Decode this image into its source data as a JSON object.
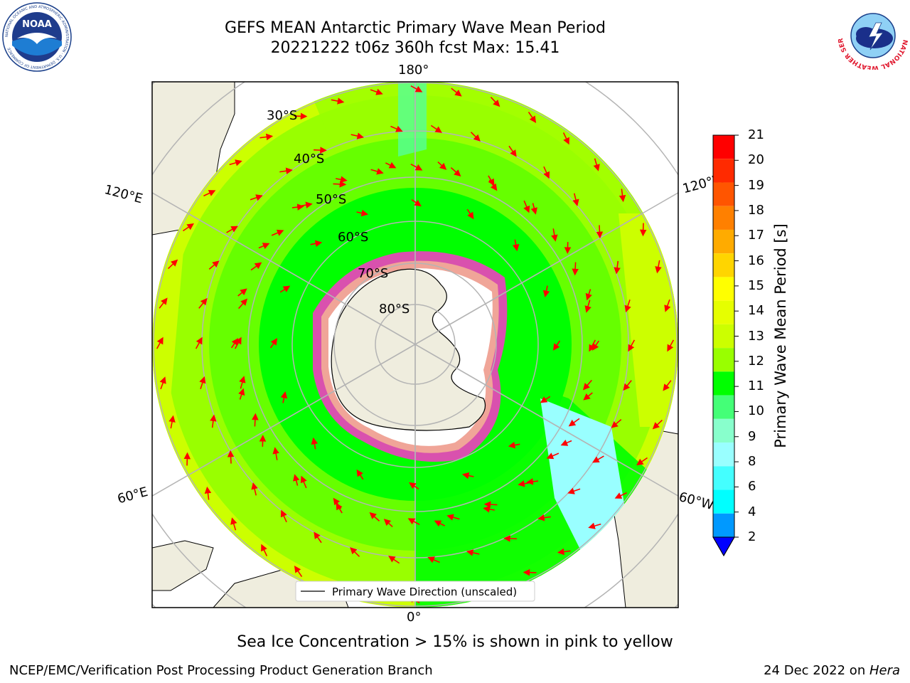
{
  "header": {
    "title_line1": "GEFS MEAN Antarctic Primary Wave Mean Period",
    "title_line2": "20221222 t06z 360h fcst   Max: 15.41"
  },
  "logos": {
    "noaa_text": "NOAA",
    "noaa_ring_text": "NATIONAL OCEANIC AND ATMOSPHERIC ADMINISTRATION · U.S. DEPARTMENT OF COMMERCE",
    "nws_ring_text": "NATIONAL WEATHER SERVICE"
  },
  "map": {
    "projection": "south polar stereographic",
    "longitude_labels": [
      "180°",
      "120°E",
      "120°W",
      "60°E",
      "60°W",
      "0°"
    ],
    "latitude_labels": [
      "30°S",
      "40°S",
      "50°S",
      "60°S",
      "70°S",
      "80°S"
    ],
    "colors": {
      "land": "#efedde",
      "ice": "#ffffff",
      "grid": "#b4b4b4",
      "arrow": "#ff0000",
      "ice_pink": "#ff33cc",
      "ice_magenta": "#ee00ee",
      "ice_yellow": "#ffdd88"
    },
    "legend": "Primary Wave Direction (unscaled)"
  },
  "colorbar": {
    "title": "Primary Wave Mean Period [s]",
    "ticks": [
      "21",
      "20",
      "19",
      "18",
      "17",
      "16",
      "15",
      "14",
      "13",
      "12",
      "11",
      "10",
      "9",
      "8",
      "6",
      "4",
      "2"
    ],
    "colors_top_to_bottom": [
      "#ff0000",
      "#ff2a00",
      "#ff5500",
      "#ff8000",
      "#ffab00",
      "#ffd500",
      "#ffff00",
      "#e6ff00",
      "#ccff00",
      "#99ff00",
      "#00ff00",
      "#44ff77",
      "#88ffcc",
      "#99ffff",
      "#44ffff",
      "#00ffff",
      "#0099ff",
      "#0055ff"
    ],
    "extend_color": "#0000ff"
  },
  "caption": "Sea Ice Concentration > 15% is shown in pink to yellow",
  "footer": {
    "left": "NCEP/EMC/Verification Post Processing Product Generation Branch",
    "right_date": "24 Dec 2022 on ",
    "right_machine": "Hera"
  }
}
